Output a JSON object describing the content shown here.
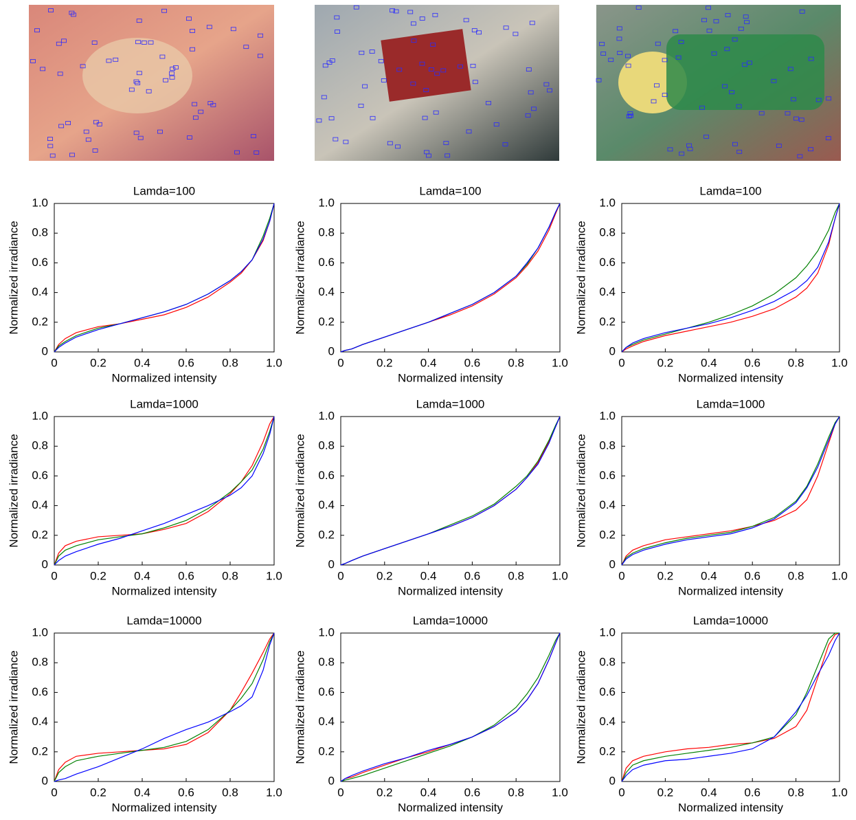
{
  "chart_data": [
    {
      "type": "line",
      "title": "Lamda=100",
      "xlabel": "Normalized intensity",
      "ylabel": "Normalized irradiance",
      "x": [
        0,
        0.02,
        0.05,
        0.1,
        0.2,
        0.3,
        0.4,
        0.5,
        0.6,
        0.7,
        0.8,
        0.85,
        0.9,
        0.95,
        0.98,
        1
      ],
      "series": [
        {
          "color": "#ff0000",
          "values": [
            0,
            0.05,
            0.09,
            0.13,
            0.17,
            0.19,
            0.22,
            0.25,
            0.3,
            0.37,
            0.47,
            0.53,
            0.62,
            0.75,
            0.88,
            1
          ]
        },
        {
          "color": "#008000",
          "values": [
            0,
            0.04,
            0.07,
            0.11,
            0.16,
            0.19,
            0.23,
            0.27,
            0.32,
            0.39,
            0.48,
            0.54,
            0.62,
            0.78,
            0.9,
            1
          ]
        },
        {
          "color": "#0000ff",
          "values": [
            0,
            0.03,
            0.06,
            0.1,
            0.15,
            0.19,
            0.23,
            0.27,
            0.32,
            0.39,
            0.48,
            0.54,
            0.62,
            0.76,
            0.88,
            1
          ]
        }
      ],
      "xlim": [
        0,
        1
      ],
      "ylim": [
        0,
        1
      ],
      "xticks": [
        0,
        0.2,
        0.4,
        0.6,
        0.8,
        {
          "value": 1,
          "label": "1.0"
        }
      ],
      "yticks": [
        0,
        0.2,
        0.4,
        0.6,
        0.8,
        {
          "value": 1,
          "label": "1.0"
        }
      ]
    },
    {
      "type": "line",
      "title": "Lamda=100",
      "xlabel": "Normalized intensity",
      "ylabel": "Normalized irradiance",
      "x": [
        0,
        0.02,
        0.05,
        0.1,
        0.2,
        0.3,
        0.4,
        0.5,
        0.6,
        0.7,
        0.8,
        0.85,
        0.9,
        0.95,
        0.98,
        1
      ],
      "series": [
        {
          "color": "#ff0000",
          "values": [
            0,
            0.01,
            0.02,
            0.05,
            0.1,
            0.15,
            0.2,
            0.25,
            0.31,
            0.39,
            0.5,
            0.58,
            0.68,
            0.82,
            0.93,
            1
          ]
        },
        {
          "color": "#008000",
          "values": [
            0,
            0.01,
            0.02,
            0.05,
            0.1,
            0.15,
            0.2,
            0.26,
            0.32,
            0.4,
            0.51,
            0.59,
            0.7,
            0.84,
            0.94,
            1
          ]
        },
        {
          "color": "#0000ff",
          "values": [
            0,
            0.01,
            0.02,
            0.05,
            0.1,
            0.15,
            0.2,
            0.26,
            0.32,
            0.4,
            0.51,
            0.6,
            0.7,
            0.84,
            0.94,
            1
          ]
        }
      ],
      "xlim": [
        0,
        1
      ],
      "ylim": [
        0,
        1
      ],
      "xticks": [
        0,
        0.2,
        0.4,
        0.6,
        0.8,
        {
          "value": 1,
          "label": "1.0"
        }
      ],
      "yticks": [
        0,
        0.2,
        0.4,
        0.6,
        0.8,
        {
          "value": 1,
          "label": "1.0"
        }
      ]
    },
    {
      "type": "line",
      "title": "Lamda=100",
      "xlabel": "Normalized intensity",
      "ylabel": "Normalized irradiance",
      "x": [
        0,
        0.02,
        0.05,
        0.1,
        0.2,
        0.3,
        0.4,
        0.5,
        0.6,
        0.7,
        0.8,
        0.85,
        0.9,
        0.95,
        0.98,
        1
      ],
      "series": [
        {
          "color": "#ff0000",
          "values": [
            0,
            0.02,
            0.04,
            0.07,
            0.11,
            0.14,
            0.17,
            0.2,
            0.24,
            0.29,
            0.37,
            0.43,
            0.53,
            0.72,
            0.9,
            1
          ]
        },
        {
          "color": "#008000",
          "values": [
            0,
            0.03,
            0.05,
            0.08,
            0.12,
            0.16,
            0.2,
            0.25,
            0.31,
            0.39,
            0.5,
            0.58,
            0.68,
            0.82,
            0.94,
            1
          ]
        },
        {
          "color": "#0000ff",
          "values": [
            0,
            0.03,
            0.06,
            0.09,
            0.13,
            0.16,
            0.19,
            0.23,
            0.28,
            0.34,
            0.42,
            0.48,
            0.57,
            0.74,
            0.9,
            1
          ]
        }
      ],
      "xlim": [
        0,
        1
      ],
      "ylim": [
        0,
        1
      ],
      "xticks": [
        0,
        0.2,
        0.4,
        0.6,
        0.8,
        {
          "value": 1,
          "label": "1.0"
        }
      ],
      "yticks": [
        0,
        0.2,
        0.4,
        0.6,
        0.8,
        {
          "value": 1,
          "label": "1.0"
        }
      ]
    },
    {
      "type": "line",
      "title": "Lamda=1000",
      "xlabel": "Normalized intensity",
      "ylabel": "Normalized irradiance",
      "x": [
        0,
        0.02,
        0.05,
        0.1,
        0.2,
        0.3,
        0.4,
        0.5,
        0.6,
        0.7,
        0.8,
        0.85,
        0.9,
        0.95,
        0.98,
        1
      ],
      "series": [
        {
          "color": "#ff0000",
          "values": [
            0,
            0.08,
            0.13,
            0.16,
            0.19,
            0.2,
            0.21,
            0.24,
            0.28,
            0.36,
            0.48,
            0.56,
            0.67,
            0.83,
            0.95,
            1
          ]
        },
        {
          "color": "#008000",
          "values": [
            0,
            0.06,
            0.1,
            0.13,
            0.17,
            0.19,
            0.21,
            0.25,
            0.3,
            0.38,
            0.49,
            0.56,
            0.64,
            0.78,
            0.9,
            1
          ]
        },
        {
          "color": "#0000ff",
          "values": [
            0,
            0.03,
            0.06,
            0.09,
            0.14,
            0.18,
            0.23,
            0.28,
            0.34,
            0.4,
            0.47,
            0.52,
            0.6,
            0.75,
            0.88,
            1
          ]
        }
      ],
      "xlim": [
        0,
        1
      ],
      "ylim": [
        0,
        1
      ],
      "xticks": [
        0,
        0.2,
        0.4,
        0.6,
        0.8,
        {
          "value": 1,
          "label": "1.0"
        }
      ],
      "yticks": [
        0,
        0.2,
        0.4,
        0.6,
        0.8,
        {
          "value": 1,
          "label": "1.0"
        }
      ]
    },
    {
      "type": "line",
      "title": "Lamda=1000",
      "xlabel": "Normalized intensity",
      "ylabel": "Normalized irradiance",
      "x": [
        0,
        0.02,
        0.05,
        0.1,
        0.2,
        0.3,
        0.4,
        0.5,
        0.6,
        0.7,
        0.8,
        0.85,
        0.9,
        0.95,
        0.98,
        1
      ],
      "series": [
        {
          "color": "#ff0000",
          "values": [
            0,
            0.01,
            0.03,
            0.06,
            0.11,
            0.16,
            0.21,
            0.26,
            0.32,
            0.4,
            0.51,
            0.59,
            0.69,
            0.83,
            0.93,
            1
          ]
        },
        {
          "color": "#008000",
          "values": [
            0,
            0.01,
            0.03,
            0.06,
            0.11,
            0.16,
            0.21,
            0.27,
            0.33,
            0.41,
            0.53,
            0.6,
            0.7,
            0.84,
            0.94,
            1
          ]
        },
        {
          "color": "#0000ff",
          "values": [
            0,
            0.01,
            0.03,
            0.06,
            0.11,
            0.16,
            0.21,
            0.26,
            0.32,
            0.4,
            0.51,
            0.59,
            0.68,
            0.82,
            0.93,
            1
          ]
        }
      ],
      "xlim": [
        0,
        1
      ],
      "ylim": [
        0,
        1
      ],
      "xticks": [
        0,
        0.2,
        0.4,
        0.6,
        0.8,
        {
          "value": 1,
          "label": "1.0"
        }
      ],
      "yticks": [
        0,
        0.2,
        0.4,
        0.6,
        0.8,
        {
          "value": 1,
          "label": "1.0"
        }
      ]
    },
    {
      "type": "line",
      "title": "Lamda=1000",
      "xlabel": "Normalized intensity",
      "ylabel": "Normalized irradiance",
      "x": [
        0,
        0.02,
        0.05,
        0.1,
        0.2,
        0.3,
        0.4,
        0.5,
        0.6,
        0.7,
        0.8,
        0.85,
        0.9,
        0.95,
        0.98,
        1
      ],
      "series": [
        {
          "color": "#ff0000",
          "values": [
            0,
            0.06,
            0.1,
            0.13,
            0.17,
            0.19,
            0.21,
            0.23,
            0.26,
            0.3,
            0.37,
            0.44,
            0.6,
            0.82,
            0.95,
            1
          ]
        },
        {
          "color": "#008000",
          "values": [
            0,
            0.05,
            0.08,
            0.11,
            0.15,
            0.18,
            0.2,
            0.22,
            0.26,
            0.32,
            0.43,
            0.53,
            0.68,
            0.86,
            0.96,
            1
          ]
        },
        {
          "color": "#0000ff",
          "values": [
            0,
            0.04,
            0.07,
            0.1,
            0.14,
            0.17,
            0.19,
            0.21,
            0.25,
            0.31,
            0.42,
            0.52,
            0.66,
            0.84,
            0.95,
            1
          ]
        }
      ],
      "xlim": [
        0,
        1
      ],
      "ylim": [
        0,
        1
      ],
      "xticks": [
        0,
        0.2,
        0.4,
        0.6,
        0.8,
        {
          "value": 1,
          "label": "1.0"
        }
      ],
      "yticks": [
        0,
        0.2,
        0.4,
        0.6,
        0.8,
        {
          "value": 1,
          "label": "1.0"
        }
      ]
    },
    {
      "type": "line",
      "title": "Lamda=10000",
      "xlabel": "Normalized intensity",
      "ylabel": "Normalized irradiance",
      "x": [
        0,
        0.02,
        0.05,
        0.1,
        0.2,
        0.3,
        0.4,
        0.5,
        0.6,
        0.7,
        0.8,
        0.85,
        0.9,
        0.95,
        0.98,
        1
      ],
      "series": [
        {
          "color": "#ff0000",
          "values": [
            0,
            0.08,
            0.13,
            0.17,
            0.19,
            0.2,
            0.21,
            0.22,
            0.25,
            0.33,
            0.48,
            0.6,
            0.73,
            0.87,
            0.96,
            1
          ]
        },
        {
          "color": "#008000",
          "values": [
            0,
            0.06,
            0.1,
            0.14,
            0.17,
            0.19,
            0.21,
            0.23,
            0.27,
            0.35,
            0.48,
            0.56,
            0.66,
            0.82,
            0.94,
            1
          ]
        },
        {
          "color": "#0000ff",
          "values": [
            0,
            0.01,
            0.02,
            0.05,
            0.1,
            0.16,
            0.22,
            0.29,
            0.35,
            0.4,
            0.47,
            0.51,
            0.57,
            0.75,
            0.92,
            1
          ]
        }
      ],
      "xlim": [
        0,
        1
      ],
      "ylim": [
        0,
        1
      ],
      "xticks": [
        0,
        0.2,
        0.4,
        0.6,
        0.8,
        {
          "value": 1,
          "label": "1.0"
        }
      ],
      "yticks": [
        0,
        0.2,
        0.4,
        0.6,
        0.8,
        {
          "value": 1,
          "label": "1.0"
        }
      ]
    },
    {
      "type": "line",
      "title": "Lamda=10000",
      "xlabel": "Normalized intensity",
      "ylabel": "Normalized irradiance",
      "x": [
        0,
        0.02,
        0.05,
        0.1,
        0.2,
        0.3,
        0.4,
        0.5,
        0.6,
        0.7,
        0.8,
        0.85,
        0.9,
        0.95,
        0.98,
        1
      ],
      "series": [
        {
          "color": "#ff0000",
          "values": [
            0,
            0.02,
            0.03,
            0.06,
            0.11,
            0.16,
            0.2,
            0.25,
            0.3,
            0.37,
            0.47,
            0.55,
            0.66,
            0.82,
            0.93,
            1
          ]
        },
        {
          "color": "#008000",
          "values": [
            0,
            0.01,
            0.02,
            0.04,
            0.09,
            0.14,
            0.19,
            0.24,
            0.3,
            0.38,
            0.5,
            0.59,
            0.7,
            0.85,
            0.95,
            1
          ]
        },
        {
          "color": "#0000ff",
          "values": [
            0,
            0.02,
            0.04,
            0.07,
            0.12,
            0.16,
            0.21,
            0.25,
            0.3,
            0.37,
            0.47,
            0.55,
            0.66,
            0.82,
            0.93,
            1
          ]
        }
      ],
      "xlim": [
        0,
        1
      ],
      "ylim": [
        0,
        1
      ],
      "xticks": [
        0,
        0.2,
        0.4,
        0.6,
        0.8,
        {
          "value": 1,
          "label": "1.0"
        }
      ],
      "yticks": [
        0,
        0.2,
        0.4,
        0.6,
        0.8,
        {
          "value": 1,
          "label": "1.0"
        }
      ]
    },
    {
      "type": "line",
      "title": "Lamda=10000",
      "xlabel": "Normalized intensity",
      "ylabel": "Normalized irradiance",
      "x": [
        0,
        0.02,
        0.05,
        0.1,
        0.2,
        0.3,
        0.4,
        0.5,
        0.6,
        0.7,
        0.8,
        0.85,
        0.9,
        0.95,
        0.98,
        1
      ],
      "series": [
        {
          "color": "#ff0000",
          "values": [
            0,
            0.09,
            0.14,
            0.17,
            0.2,
            0.22,
            0.23,
            0.25,
            0.26,
            0.29,
            0.37,
            0.48,
            0.7,
            0.92,
            0.99,
            1
          ]
        },
        {
          "color": "#008000",
          "values": [
            0,
            0.06,
            0.11,
            0.14,
            0.17,
            0.19,
            0.21,
            0.23,
            0.26,
            0.3,
            0.45,
            0.6,
            0.78,
            0.96,
            1,
            1
          ]
        },
        {
          "color": "#0000ff",
          "values": [
            0,
            0.04,
            0.08,
            0.11,
            0.14,
            0.15,
            0.17,
            0.19,
            0.22,
            0.3,
            0.47,
            0.58,
            0.72,
            0.85,
            0.95,
            1
          ]
        }
      ],
      "xlim": [
        0,
        1
      ],
      "ylim": [
        0,
        1
      ],
      "xticks": [
        0,
        0.2,
        0.4,
        0.6,
        0.8,
        {
          "value": 1,
          "label": "1.0"
        }
      ],
      "yticks": [
        0,
        0.2,
        0.4,
        0.6,
        0.8,
        {
          "value": 1,
          "label": "1.0"
        }
      ]
    }
  ]
}
